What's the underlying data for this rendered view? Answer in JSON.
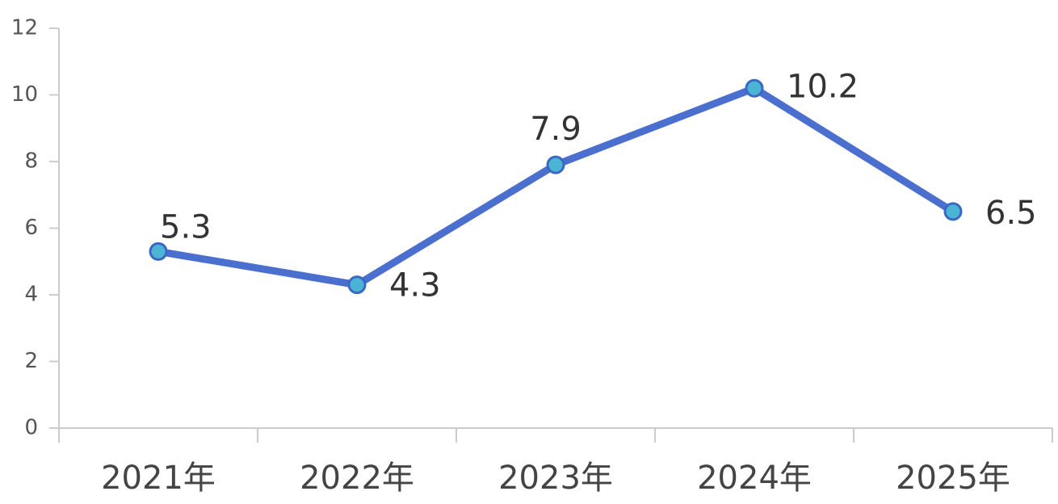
{
  "chart_data": {
    "type": "line",
    "categories": [
      "2021年",
      "2022年",
      "2023年",
      "2024年",
      "2025年"
    ],
    "series": [
      {
        "color": "#4a6fcf",
        "values": [
          5.3,
          4.3,
          7.9,
          10.2,
          6.5
        ]
      }
    ],
    "ylim": [
      0,
      12
    ],
    "yticks": [
      0,
      2,
      4,
      6,
      8,
      10,
      12
    ],
    "grid": false
  }
}
